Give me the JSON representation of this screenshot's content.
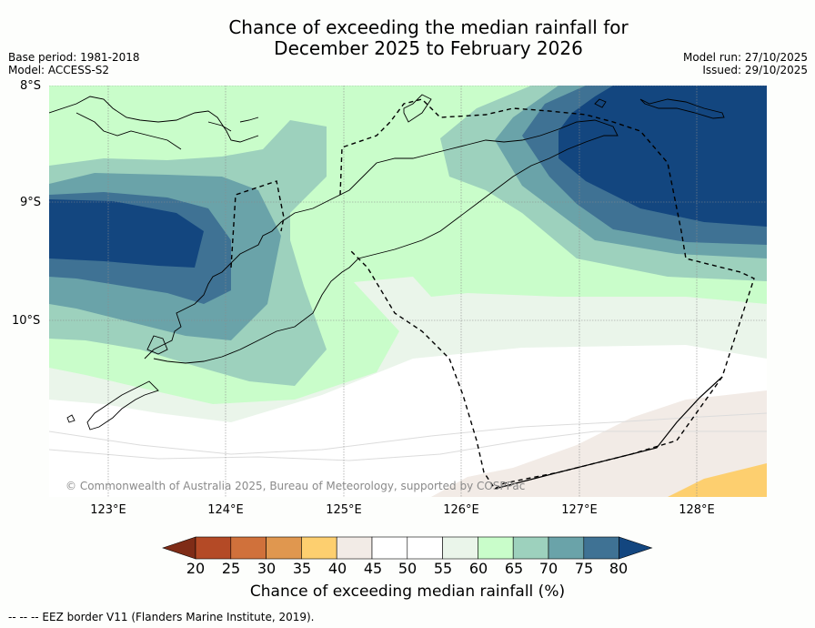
{
  "title": {
    "line1": "Chance of exceeding the median rainfall for",
    "line2": "December 2025 to February 2026"
  },
  "meta": {
    "base_period": "Base period: 1981-2018",
    "model": "Model: ACCESS-S2",
    "model_run": "Model run: 27/10/2025",
    "issued": "Issued: 29/10/2025"
  },
  "map": {
    "lat_labels": [
      "8°S",
      "9°S",
      "10°S"
    ],
    "lon_labels": [
      "123°E",
      "124°E",
      "125°E",
      "126°E",
      "127°E",
      "128°E"
    ],
    "copyright": "© Commonwealth of Australia 2025, Bureau of Meteorology, supported by COSPPac"
  },
  "colorbar": {
    "colors": [
      "#7f2c17",
      "#b44a26",
      "#d0713b",
      "#e0974f",
      "#fdcf6f",
      "#f2ebe6",
      "#ffffff",
      "#ffffff",
      "#eaf5ea",
      "#c9fdca",
      "#9dd1bd",
      "#6aa3a9",
      "#3f7294",
      "#13467f"
    ],
    "ticks": [
      "20",
      "25",
      "30",
      "35",
      "40",
      "45",
      "50",
      "55",
      "60",
      "65",
      "70",
      "75",
      "80"
    ],
    "label": "Chance of exceeding median rainfall (%)"
  },
  "footer": "--  --  -- EEZ border V11 (Flanders Marine Institute, 2019)."
}
